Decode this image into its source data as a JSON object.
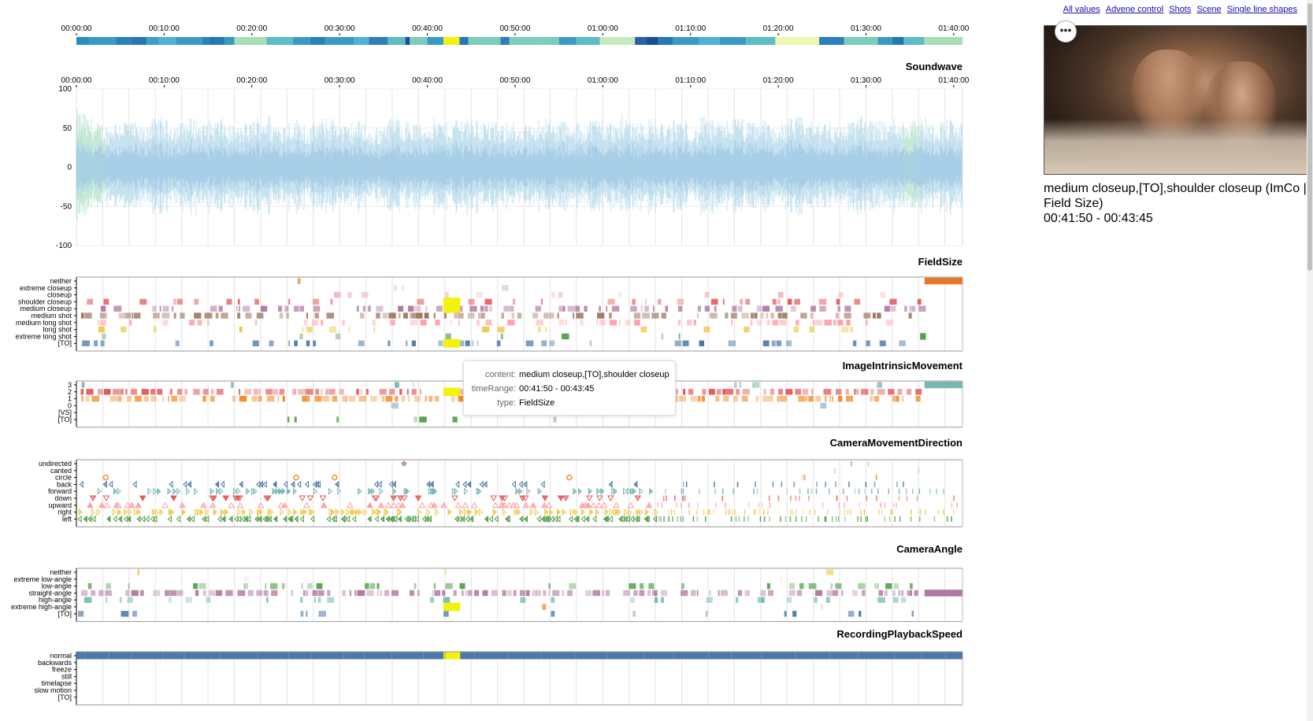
{
  "links": [
    "All values",
    "Advene control",
    "Shots",
    "Scene",
    "Single line shapes"
  ],
  "video": {
    "caption_line1": "medium closeup,[TO],shoulder closeup (ImCo |",
    "caption_line2": "Field Size)",
    "caption_line3": "00:41:50 - 00:43:45",
    "more_glyph": "•••"
  },
  "tooltip": {
    "content_key": "content:",
    "content": "medium closeup,[TO],shoulder closeup",
    "range_key": "timeRange:",
    "range": "00:41:50 - 00:43:45",
    "type_key": "type:",
    "type": "FieldSize"
  },
  "time_ticks": [
    "00:00:00",
    "00:10:00",
    "00:20:00",
    "00:30:00",
    "00:40:00",
    "00:50:00",
    "01:00:00",
    "01:10:00",
    "01:20:00",
    "01:30:00",
    "01:40:00"
  ],
  "colors": {
    "highlight": "#f2f20a",
    "fs_neither": "#e6772b",
    "fs_to": "#4e79a7",
    "fs_medium_shot": "#9c755f",
    "fs_medium_closeup": "#b07aa1",
    "fs_shoulder": "#e15759",
    "fs_medium_long": "#ff9da7",
    "fs_long": "#edc948",
    "fs_extreme_long": "#59a14f",
    "im_3": "#76b7b2",
    "im_2": "#e15759",
    "im_1": "#f28e2b",
    "ca_straight": "#b07aa1",
    "ca_low": "#59a14f",
    "speed_normal": "#4e79a7"
  },
  "chart_data": [
    {
      "type": "heatmap",
      "title": "",
      "description": "scene color strip across full timeline",
      "x_range_seconds": [
        0,
        6060
      ],
      "segments": [
        {
          "start": 0,
          "end": 90,
          "color": "#2b8cbe"
        },
        {
          "start": 90,
          "end": 270,
          "color": "#3a9ac4"
        },
        {
          "start": 270,
          "end": 370,
          "color": "#2c7fb8"
        },
        {
          "start": 370,
          "end": 480,
          "color": "#2478b4"
        },
        {
          "start": 480,
          "end": 560,
          "color": "#3f9fc6"
        },
        {
          "start": 560,
          "end": 680,
          "color": "#4eb3d3"
        },
        {
          "start": 680,
          "end": 860,
          "color": "#3a9ac4"
        },
        {
          "start": 860,
          "end": 910,
          "color": "#2c7fb8"
        },
        {
          "start": 910,
          "end": 1010,
          "color": "#2478b4"
        },
        {
          "start": 1010,
          "end": 1080,
          "color": "#3a9ac4"
        },
        {
          "start": 1080,
          "end": 1300,
          "color": "#a8ddb5"
        },
        {
          "start": 1300,
          "end": 1480,
          "color": "#5fbcc5"
        },
        {
          "start": 1480,
          "end": 1600,
          "color": "#3a9ac4"
        },
        {
          "start": 1600,
          "end": 1700,
          "color": "#2c7fb8"
        },
        {
          "start": 1700,
          "end": 1900,
          "color": "#3a9ac4"
        },
        {
          "start": 1900,
          "end": 2000,
          "color": "#4eb3d3"
        },
        {
          "start": 2000,
          "end": 2130,
          "color": "#2c7fb8"
        },
        {
          "start": 2130,
          "end": 2250,
          "color": "#5fbcc5"
        },
        {
          "start": 2250,
          "end": 2280,
          "color": "#1a4e98"
        },
        {
          "start": 2280,
          "end": 2400,
          "color": "#7ccdbb"
        },
        {
          "start": 2400,
          "end": 2510,
          "color": "#3a9ac4"
        },
        {
          "start": 2510,
          "end": 2620,
          "color": "#f2f20a"
        },
        {
          "start": 2620,
          "end": 2680,
          "color": "#2478b4"
        },
        {
          "start": 2680,
          "end": 2900,
          "color": "#7ccdbb"
        },
        {
          "start": 2900,
          "end": 2960,
          "color": "#2c7fb8"
        },
        {
          "start": 2960,
          "end": 3180,
          "color": "#7ccdbb"
        },
        {
          "start": 3180,
          "end": 3300,
          "color": "#7ccdbb"
        },
        {
          "start": 3300,
          "end": 3420,
          "color": "#3a9ac4"
        },
        {
          "start": 3420,
          "end": 3580,
          "color": "#5fbcc5"
        },
        {
          "start": 3580,
          "end": 3820,
          "color": "#c7e9c0"
        },
        {
          "start": 3820,
          "end": 3900,
          "color": "#2c5fa8"
        },
        {
          "start": 3900,
          "end": 3980,
          "color": "#1a4e98"
        },
        {
          "start": 3980,
          "end": 4080,
          "color": "#2478b4"
        },
        {
          "start": 4080,
          "end": 4260,
          "color": "#3a9ac4"
        },
        {
          "start": 4260,
          "end": 4400,
          "color": "#4eb3d3"
        },
        {
          "start": 4400,
          "end": 4580,
          "color": "#3a9ac4"
        },
        {
          "start": 4580,
          "end": 4780,
          "color": "#5fbcc5"
        },
        {
          "start": 4780,
          "end": 5080,
          "color": "#edf8b1"
        },
        {
          "start": 5080,
          "end": 5250,
          "color": "#2c7fb8"
        },
        {
          "start": 5250,
          "end": 5480,
          "color": "#7ccdbb"
        },
        {
          "start": 5480,
          "end": 5580,
          "color": "#3a9ac4"
        },
        {
          "start": 5580,
          "end": 5660,
          "color": "#2478b4"
        },
        {
          "start": 5660,
          "end": 5800,
          "color": "#5fbcc5"
        },
        {
          "start": 5800,
          "end": 6060,
          "color": "#a8ddb5"
        }
      ]
    },
    {
      "type": "area",
      "title": "Soundwave",
      "ylim": [
        -100,
        100
      ],
      "yticks": [
        100,
        50,
        0,
        -50,
        -100
      ],
      "x_range_seconds": [
        0,
        6060
      ],
      "envelope_amplitude_by_minute": [
        70,
        62,
        55,
        52,
        58,
        60,
        55,
        50,
        60,
        62,
        58,
        55,
        60,
        62,
        55,
        58,
        60,
        52,
        50,
        55,
        62,
        65,
        55,
        55,
        58,
        60,
        50,
        58,
        60,
        62,
        52,
        55,
        58,
        45,
        50,
        60,
        62,
        58,
        55,
        52,
        60,
        58,
        55,
        62,
        65,
        60,
        58,
        55,
        52,
        60,
        45,
        52,
        60,
        62,
        55,
        58,
        50,
        55,
        60,
        62,
        58,
        55,
        65,
        60,
        58,
        60,
        55,
        52,
        60,
        58,
        48,
        62,
        58,
        55,
        60,
        62,
        55,
        58,
        60,
        52,
        55,
        60,
        62,
        58,
        55,
        60,
        52,
        55,
        60,
        65,
        58,
        60,
        55,
        62,
        58,
        70,
        62,
        55,
        58,
        60,
        55
      ]
    },
    {
      "type": "scatter",
      "title": "FieldSize",
      "categories": [
        "neither",
        "extreme closeup",
        "closeup",
        "shoulder closeup",
        "medium closeup",
        "medium shot",
        "medium long shot",
        "long shot",
        "extreme long shot",
        "[TO]"
      ],
      "highlight": {
        "start": 2510,
        "end": 2625,
        "categories": [
          "shoulder closeup",
          "medium closeup",
          "[TO]"
        ]
      },
      "blocks": [
        {
          "category": "neither",
          "start": 5800,
          "end": 6060,
          "color": "#e6772b"
        },
        {
          "category": "extreme long shot",
          "start": 5770,
          "end": 5810,
          "color": "#59a14f"
        }
      ]
    },
    {
      "type": "scatter",
      "title": "ImageIntrinsicMovement",
      "categories": [
        "3",
        "2",
        "1",
        "0",
        "[VS]",
        "[TO]"
      ],
      "highlight": {
        "start": 2510,
        "end": 2625,
        "categories": [
          "2"
        ]
      },
      "blocks": [
        {
          "category": "3",
          "start": 5800,
          "end": 6060,
          "color": "#76b7b2"
        }
      ]
    },
    {
      "type": "scatter",
      "title": "CameraMovementDirection",
      "categories": [
        "undirected",
        "canted",
        "circle",
        "back",
        "forward",
        "down",
        "upward",
        "right",
        "left"
      ]
    },
    {
      "type": "scatter",
      "title": "CameraAngle",
      "categories": [
        "neither",
        "extreme low-angle",
        "low-angle",
        "straight-angle",
        "high-angle",
        "extreme high-angle",
        "[TO]"
      ],
      "highlight": {
        "start": 2510,
        "end": 2625,
        "categories": [
          "extreme high-angle"
        ]
      },
      "blocks": [
        {
          "category": "straight-angle",
          "start": 5800,
          "end": 6060,
          "color": "#b07aa1"
        }
      ]
    },
    {
      "type": "bar",
      "title": "RecordingPlaybackSpeed",
      "categories": [
        "normal",
        "backwards",
        "freeze",
        "still",
        "timelapse",
        "slow motion",
        "[TO]"
      ],
      "blocks": [
        {
          "category": "normal",
          "start": 0,
          "end": 6060,
          "color": "#4e79a7"
        },
        {
          "category": "normal",
          "start": 2510,
          "end": 2625,
          "color": "#f2f20a"
        }
      ]
    }
  ]
}
